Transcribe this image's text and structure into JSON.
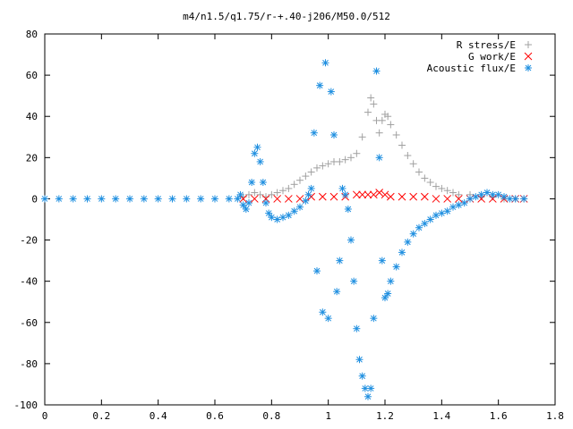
{
  "chart_data": {
    "type": "scatter",
    "title": "m4/n1.5/q1.75/r-+.40-j206/M50.0/512",
    "xlabel": "",
    "ylabel": "",
    "xlim": [
      0,
      1.8
    ],
    "ylim": [
      -100,
      80
    ],
    "x_ticks": [
      0,
      0.2,
      0.4,
      0.6,
      0.8,
      1,
      1.2,
      1.4,
      1.6,
      1.8
    ],
    "x_tick_labels": [
      "0",
      "0.2",
      "0.4",
      "0.6",
      "0.8",
      "1",
      "1.2",
      "1.4",
      "1.6",
      "1.8"
    ],
    "y_ticks": [
      -100,
      -80,
      -60,
      -40,
      -20,
      0,
      20,
      40,
      60,
      80
    ],
    "y_tick_labels": [
      "-100",
      "-80",
      "-60",
      "-40",
      "-20",
      "0",
      "20",
      "40",
      "60",
      "80"
    ],
    "grid": false,
    "legend_position": "top-right",
    "series": [
      {
        "name": "R stress/E",
        "marker": "+",
        "color": "#a0a0a0",
        "points": [
          [
            0.7,
            1
          ],
          [
            0.72,
            2
          ],
          [
            0.74,
            3
          ],
          [
            0.76,
            2
          ],
          [
            0.78,
            1
          ],
          [
            0.8,
            2
          ],
          [
            0.82,
            3
          ],
          [
            0.84,
            4
          ],
          [
            0.86,
            5
          ],
          [
            0.88,
            7
          ],
          [
            0.9,
            9
          ],
          [
            0.92,
            11
          ],
          [
            0.94,
            13
          ],
          [
            0.96,
            15
          ],
          [
            0.98,
            16
          ],
          [
            1.0,
            17
          ],
          [
            1.02,
            18
          ],
          [
            1.04,
            18
          ],
          [
            1.06,
            19
          ],
          [
            1.08,
            20
          ],
          [
            1.1,
            22
          ],
          [
            1.12,
            30
          ],
          [
            1.14,
            42
          ],
          [
            1.15,
            49
          ],
          [
            1.16,
            46
          ],
          [
            1.17,
            38
          ],
          [
            1.18,
            32
          ],
          [
            1.19,
            38
          ],
          [
            1.2,
            41
          ],
          [
            1.21,
            40
          ],
          [
            1.22,
            36
          ],
          [
            1.24,
            31
          ],
          [
            1.26,
            26
          ],
          [
            1.28,
            21
          ],
          [
            1.3,
            17
          ],
          [
            1.32,
            13
          ],
          [
            1.34,
            10
          ],
          [
            1.36,
            8
          ],
          [
            1.38,
            6
          ],
          [
            1.4,
            5
          ],
          [
            1.42,
            4
          ],
          [
            1.44,
            3
          ],
          [
            1.46,
            2
          ],
          [
            1.5,
            2
          ],
          [
            1.54,
            1
          ],
          [
            1.58,
            1
          ],
          [
            1.62,
            0
          ],
          [
            1.66,
            0
          ],
          [
            1.69,
            0
          ]
        ]
      },
      {
        "name": "G work/E",
        "marker": "x",
        "color": "#ff0000",
        "points": [
          [
            0.7,
            0
          ],
          [
            0.74,
            0
          ],
          [
            0.78,
            0
          ],
          [
            0.82,
            0
          ],
          [
            0.86,
            0
          ],
          [
            0.9,
            0
          ],
          [
            0.94,
            1
          ],
          [
            0.98,
            1
          ],
          [
            1.02,
            1
          ],
          [
            1.06,
            1
          ],
          [
            1.1,
            2
          ],
          [
            1.12,
            2
          ],
          [
            1.14,
            2
          ],
          [
            1.16,
            2
          ],
          [
            1.18,
            3
          ],
          [
            1.2,
            2
          ],
          [
            1.22,
            1
          ],
          [
            1.26,
            1
          ],
          [
            1.3,
            1
          ],
          [
            1.34,
            1
          ],
          [
            1.38,
            0
          ],
          [
            1.42,
            0
          ],
          [
            1.46,
            0
          ],
          [
            1.5,
            0
          ],
          [
            1.54,
            0
          ],
          [
            1.58,
            0
          ],
          [
            1.62,
            0
          ],
          [
            1.66,
            0
          ],
          [
            1.69,
            0
          ]
        ]
      },
      {
        "name": "Acoustic flux/E",
        "marker": "*",
        "color": "#1f8fe0",
        "points": [
          [
            0.0,
            0
          ],
          [
            0.05,
            0
          ],
          [
            0.1,
            0
          ],
          [
            0.15,
            0
          ],
          [
            0.2,
            0
          ],
          [
            0.25,
            0
          ],
          [
            0.3,
            0
          ],
          [
            0.35,
            0
          ],
          [
            0.4,
            0
          ],
          [
            0.45,
            0
          ],
          [
            0.5,
            0
          ],
          [
            0.55,
            0
          ],
          [
            0.6,
            0
          ],
          [
            0.65,
            0
          ],
          [
            0.68,
            0
          ],
          [
            0.69,
            2
          ],
          [
            0.7,
            -3
          ],
          [
            0.71,
            -5
          ],
          [
            0.72,
            -2
          ],
          [
            0.73,
            8
          ],
          [
            0.74,
            22
          ],
          [
            0.75,
            25
          ],
          [
            0.76,
            18
          ],
          [
            0.77,
            8
          ],
          [
            0.78,
            -2
          ],
          [
            0.79,
            -7
          ],
          [
            0.8,
            -9
          ],
          [
            0.82,
            -10
          ],
          [
            0.84,
            -9
          ],
          [
            0.86,
            -8
          ],
          [
            0.88,
            -6
          ],
          [
            0.9,
            -4
          ],
          [
            0.92,
            -1
          ],
          [
            0.93,
            2
          ],
          [
            0.94,
            5
          ],
          [
            0.95,
            32
          ],
          [
            0.96,
            -35
          ],
          [
            0.97,
            55
          ],
          [
            0.98,
            -55
          ],
          [
            0.99,
            66
          ],
          [
            1.0,
            -58
          ],
          [
            1.01,
            52
          ],
          [
            1.02,
            31
          ],
          [
            1.03,
            -45
          ],
          [
            1.04,
            -30
          ],
          [
            1.05,
            5
          ],
          [
            1.06,
            2
          ],
          [
            1.07,
            -5
          ],
          [
            1.08,
            -20
          ],
          [
            1.09,
            -40
          ],
          [
            1.1,
            -63
          ],
          [
            1.11,
            -78
          ],
          [
            1.12,
            -86
          ],
          [
            1.13,
            -92
          ],
          [
            1.14,
            -96
          ],
          [
            1.15,
            -92
          ],
          [
            1.16,
            -58
          ],
          [
            1.17,
            62
          ],
          [
            1.18,
            20
          ],
          [
            1.19,
            -30
          ],
          [
            1.2,
            -48
          ],
          [
            1.21,
            -46
          ],
          [
            1.22,
            -40
          ],
          [
            1.24,
            -33
          ],
          [
            1.26,
            -26
          ],
          [
            1.28,
            -21
          ],
          [
            1.3,
            -17
          ],
          [
            1.32,
            -14
          ],
          [
            1.34,
            -12
          ],
          [
            1.36,
            -10
          ],
          [
            1.38,
            -8
          ],
          [
            1.4,
            -7
          ],
          [
            1.42,
            -6
          ],
          [
            1.44,
            -4
          ],
          [
            1.46,
            -3
          ],
          [
            1.48,
            -2
          ],
          [
            1.5,
            0
          ],
          [
            1.52,
            1
          ],
          [
            1.54,
            2
          ],
          [
            1.56,
            3
          ],
          [
            1.58,
            2
          ],
          [
            1.6,
            2
          ],
          [
            1.62,
            1
          ],
          [
            1.64,
            0
          ],
          [
            1.66,
            0
          ],
          [
            1.69,
            0
          ]
        ]
      }
    ]
  }
}
